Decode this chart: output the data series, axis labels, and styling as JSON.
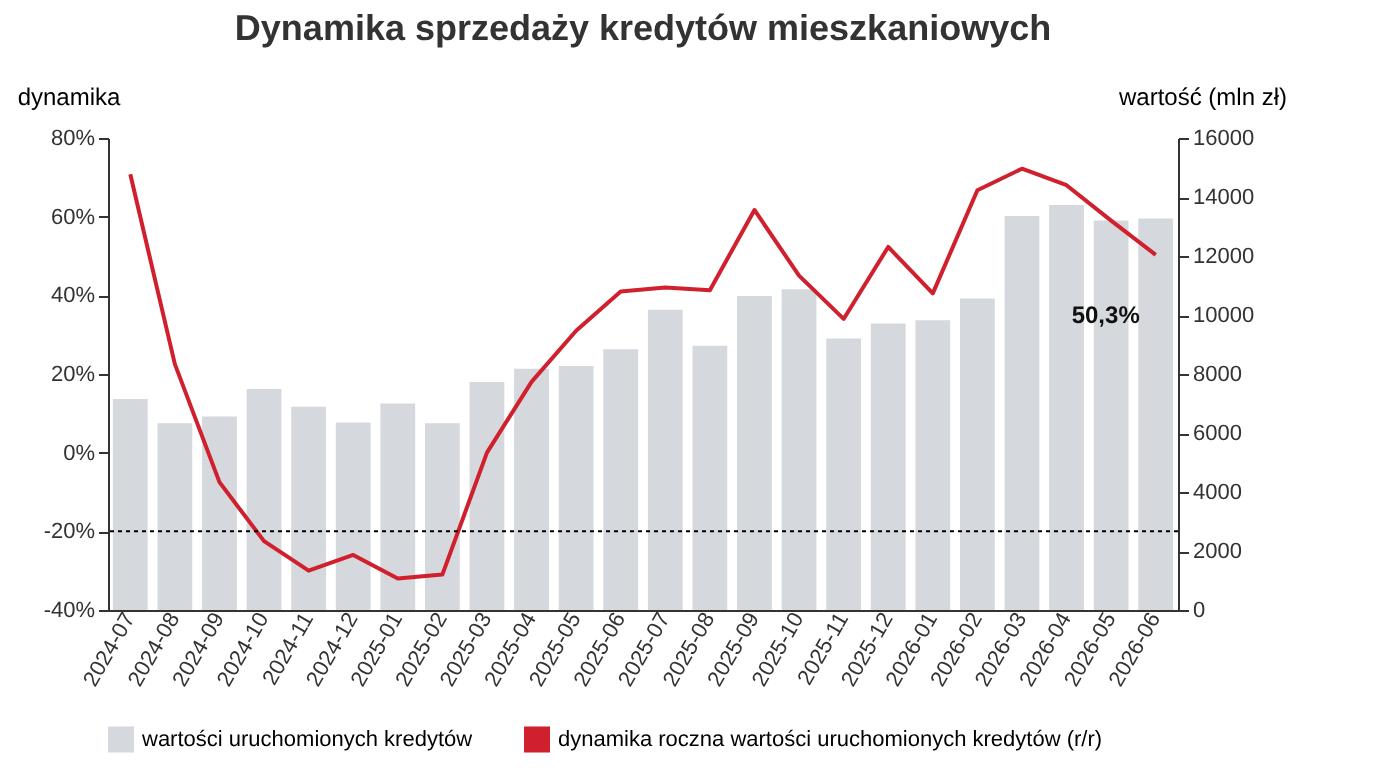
{
  "chart_data": {
    "type": "bar",
    "title": "Dynamika sprzedaży kredytów mieszkaniowych",
    "ylabel": "dynamika",
    "y2label": "wartość (mln zł)",
    "categories": [
      "2024-07",
      "2024-08",
      "2024-09",
      "2024-10",
      "2024-11",
      "2024-12",
      "2025-01",
      "2025-02",
      "2025-03",
      "2025-04",
      "2025-05",
      "2025-06",
      "2025-07",
      "2025-08",
      "2025-09",
      "2025-10",
      "2025-11",
      "2025-12",
      "2026-01",
      "2026-02",
      "2026-03",
      "2026-04",
      "2026-05",
      "2026-06"
    ],
    "series": [
      {
        "name": "wartości uruchomionych kredytów",
        "axis": "y2",
        "color": "#d5d8dc",
        "values": [
          7150,
          6330,
          6560,
          7490,
          6890,
          6360,
          7000,
          6330,
          7730,
          8180,
          8270,
          8840,
          10180,
          8960,
          10640,
          10870,
          9200,
          9710,
          9820,
          10560,
          13360,
          13730,
          13200,
          13270
        ]
      },
      {
        "name": "dynamika roczna wartości uruchomionych kredytów (r/r)",
        "type": "line",
        "color": "#d0202e",
        "values": [
          70.8,
          22.5,
          -7.5,
          -22.5,
          -30,
          -26,
          -32,
          -31,
          0,
          18,
          31,
          41,
          42,
          41.3,
          61.7,
          45,
          34,
          52.3,
          40.5,
          66.7,
          72.2,
          68,
          59,
          50.3
        ]
      }
    ],
    "ylim": [
      -40,
      80
    ],
    "yticks": [
      {
        "value": -40,
        "label": "-40%"
      },
      {
        "value": -20,
        "label": "-20%"
      },
      {
        "value": 0,
        "label": "0%"
      },
      {
        "value": 20,
        "label": "20%"
      },
      {
        "value": 40,
        "label": "40%"
      },
      {
        "value": 60,
        "label": "60%"
      },
      {
        "value": 80,
        "label": "80%"
      }
    ],
    "y2lim": [
      0,
      16000
    ],
    "y2ticks": [
      0,
      2000,
      4000,
      6000,
      8000,
      10000,
      12000,
      14000,
      16000
    ],
    "ref_lines": [
      {
        "axis": "y",
        "value": -20,
        "color": "#000000",
        "line_style": "dotted"
      }
    ],
    "annotations": [
      {
        "text": "50,3%",
        "x": "2026-06",
        "y": 50.3
      }
    ],
    "grid": false,
    "legend": "bottom"
  }
}
